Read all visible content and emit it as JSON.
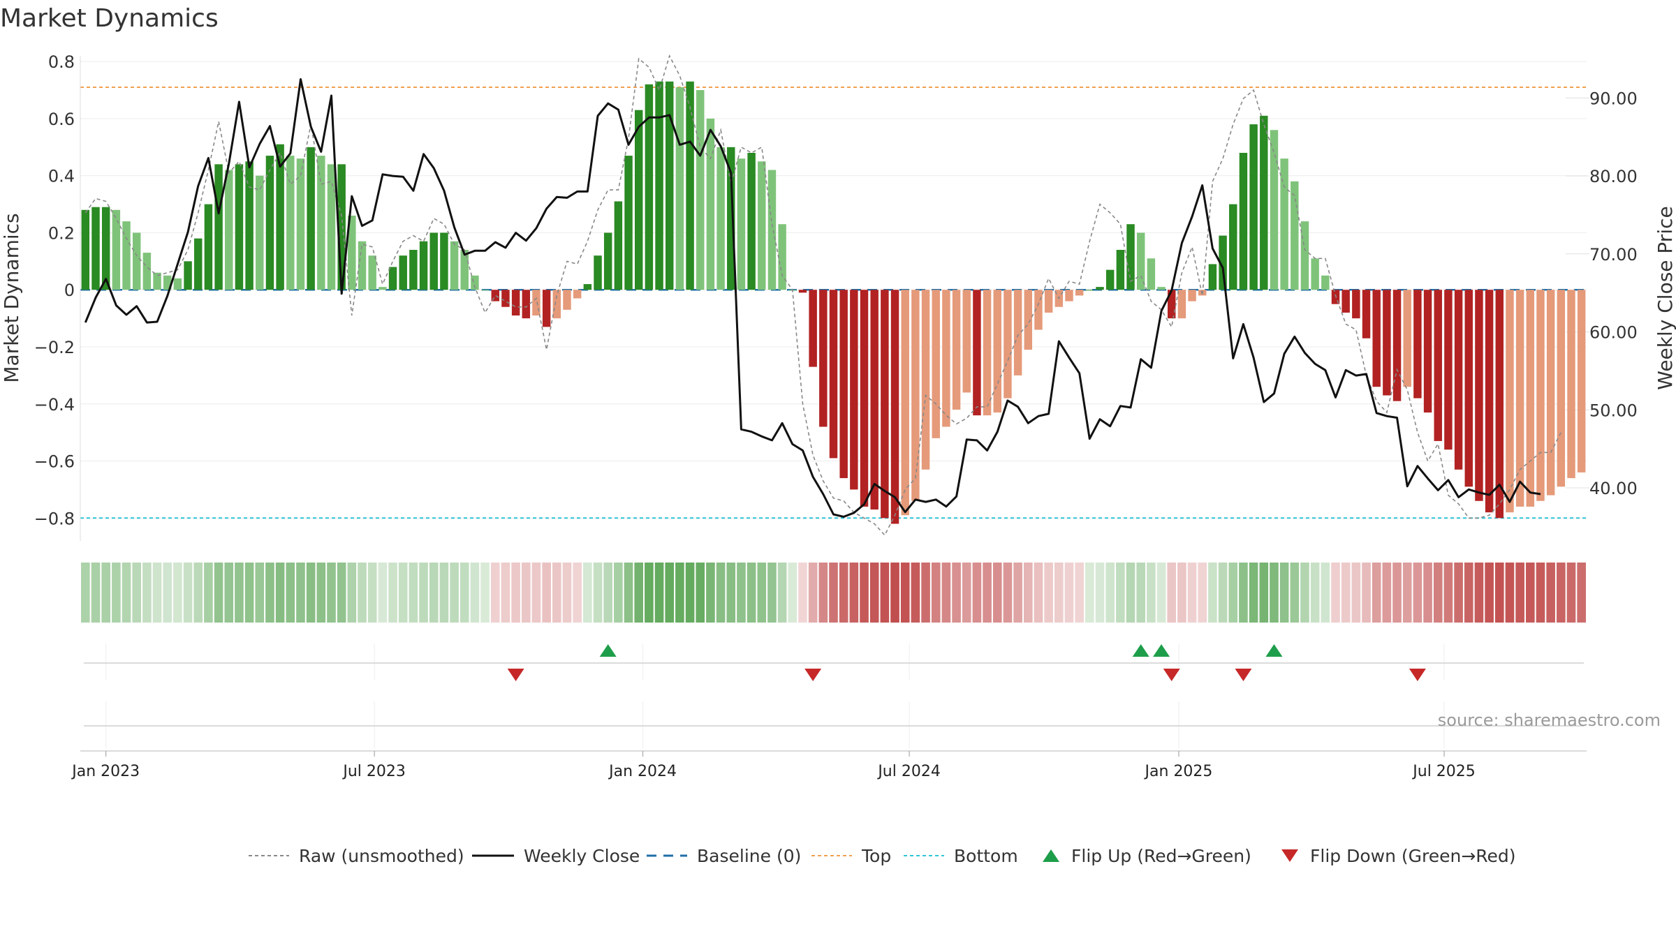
{
  "title": "Market Dynamics",
  "source": "source: sharemaestro.com",
  "colors": {
    "pos_strong": "#2a8a23",
    "pos_weak": "#7fc37a",
    "neg_strong": "#b22222",
    "neg_weak": "#e59a7a",
    "price_line": "#111111",
    "raw_line": "#888888",
    "baseline": "#1f6fa8",
    "top": "#f0a050",
    "bottom": "#2ec4d6",
    "flip_up": "#1e9e4a",
    "flip_down": "#c62828"
  },
  "chart_data": {
    "type": "bar",
    "title": "Market Dynamics",
    "ylabel": "Market Dynamics",
    "y2label": "Weekly Close Price",
    "ylim": [
      -0.88,
      0.82
    ],
    "y2lim": [
      33.2,
      95.4
    ],
    "yticks": [
      "0.8",
      "0.6",
      "0.4",
      "0.2",
      "0",
      "−0.2",
      "−0.4",
      "−0.6",
      "−0.8"
    ],
    "y2ticks": [
      "90.00",
      "80.00",
      "70.00",
      "60.00",
      "50.00",
      "40.00"
    ],
    "xticks": [
      "Jan 2023",
      "Jul 2023",
      "Jan 2024",
      "Jul 2024",
      "Jan 2025",
      "Jul 2025"
    ],
    "top_level": 0.71,
    "bottom_level": -0.8,
    "dynamics": [
      0.28,
      0.29,
      0.29,
      0.28,
      0.24,
      0.2,
      0.13,
      0.06,
      0.05,
      0.04,
      0.1,
      0.18,
      0.3,
      0.44,
      0.42,
      0.44,
      0.45,
      0.4,
      0.47,
      0.51,
      0.47,
      0.46,
      0.5,
      0.47,
      0.44,
      0.44,
      0.26,
      0.17,
      0.12,
      0.01,
      0.08,
      0.12,
      0.14,
      0.17,
      0.2,
      0.2,
      0.17,
      0.14,
      0.05,
      0.0,
      -0.04,
      -0.06,
      -0.09,
      -0.1,
      -0.09,
      -0.13,
      -0.1,
      -0.07,
      -0.03,
      0.02,
      0.12,
      0.2,
      0.31,
      0.47,
      0.63,
      0.72,
      0.73,
      0.73,
      0.71,
      0.73,
      0.7,
      0.6,
      0.5,
      0.5,
      0.46,
      0.48,
      0.45,
      0.42,
      0.23,
      0.0,
      -0.01,
      -0.27,
      -0.48,
      -0.59,
      -0.66,
      -0.7,
      -0.76,
      -0.77,
      -0.8,
      -0.82,
      -0.79,
      -0.74,
      -0.63,
      -0.52,
      -0.48,
      -0.42,
      -0.36,
      -0.44,
      -0.44,
      -0.43,
      -0.38,
      -0.3,
      -0.21,
      -0.14,
      -0.08,
      -0.06,
      -0.04,
      -0.02,
      0.0,
      0.01,
      0.07,
      0.14,
      0.23,
      0.2,
      0.11,
      0.01,
      -0.1,
      -0.1,
      -0.04,
      -0.02,
      0.09,
      0.19,
      0.3,
      0.48,
      0.58,
      0.61,
      0.56,
      0.46,
      0.38,
      0.24,
      0.11,
      0.05,
      -0.05,
      -0.08,
      -0.1,
      -0.17,
      -0.34,
      -0.37,
      -0.39,
      -0.34,
      -0.38,
      -0.43,
      -0.53,
      -0.56,
      -0.63,
      -0.69,
      -0.74,
      -0.78,
      -0.8,
      -0.78,
      -0.76,
      -0.76,
      -0.74,
      -0.72,
      -0.69,
      -0.66,
      -0.64
    ],
    "raw": [
      0.27,
      0.32,
      0.31,
      0.25,
      0.18,
      0.12,
      0.08,
      0.05,
      0.06,
      0.07,
      0.14,
      0.27,
      0.42,
      0.59,
      0.41,
      0.45,
      0.36,
      0.35,
      0.42,
      0.48,
      0.37,
      0.4,
      0.58,
      0.37,
      0.38,
      0.26,
      -0.09,
      0.16,
      0.15,
      0.02,
      0.1,
      0.17,
      0.19,
      0.17,
      0.25,
      0.23,
      0.16,
      0.14,
      0.01,
      -0.08,
      -0.02,
      -0.04,
      -0.06,
      -0.06,
      -0.03,
      -0.21,
      -0.02,
      0.1,
      0.09,
      0.17,
      0.28,
      0.35,
      0.35,
      0.53,
      0.81,
      0.78,
      0.7,
      0.82,
      0.75,
      0.64,
      0.5,
      0.46,
      0.56,
      0.37,
      0.5,
      0.48,
      0.5,
      0.23,
      0.05,
      0.0,
      -0.4,
      -0.58,
      -0.67,
      -0.73,
      -0.74,
      -0.78,
      -0.8,
      -0.82,
      -0.86,
      -0.79,
      -0.7,
      -0.66,
      -0.37,
      -0.4,
      -0.44,
      -0.47,
      -0.45,
      -0.41,
      -0.41,
      -0.33,
      -0.25,
      -0.16,
      -0.12,
      -0.05,
      0.04,
      -0.03,
      0.03,
      0.02,
      0.17,
      0.3,
      0.27,
      0.23,
      0.03,
      0.05,
      -0.04,
      -0.07,
      -0.13,
      0.06,
      0.15,
      -0.02,
      0.38,
      0.46,
      0.58,
      0.67,
      0.7,
      0.58,
      0.48,
      0.36,
      0.33,
      0.14,
      0.11,
      0.11,
      -0.02,
      -0.12,
      -0.14,
      -0.3,
      -0.39,
      -0.43,
      -0.28,
      -0.35,
      -0.5,
      -0.6,
      -0.54,
      -0.72,
      -0.75,
      -0.8,
      -0.8,
      -0.79,
      -0.75,
      -0.7,
      -0.63,
      -0.6,
      -0.57,
      -0.57,
      -0.5
    ],
    "close": [
      61.2,
      64.4,
      66.8,
      63.4,
      62.2,
      63.3,
      61.2,
      61.3,
      64.6,
      68.7,
      72.8,
      78.7,
      82.3,
      75.2,
      81.6,
      89.5,
      81.1,
      84.1,
      86.4,
      81.2,
      82.9,
      92.4,
      86.3,
      83.1,
      90.3,
      64.9,
      77.4,
      73.6,
      74.3,
      80.2,
      80.0,
      79.9,
      78.1,
      82.8,
      81.0,
      78.1,
      73.4,
      69.9,
      70.4,
      70.4,
      71.5,
      70.8,
      72.7,
      71.7,
      73.3,
      75.8,
      77.3,
      77.2,
      78.0,
      78.0,
      87.7,
      89.3,
      88.5,
      84.0,
      86.3,
      87.5,
      87.5,
      87.8,
      84.0,
      84.4,
      82.6,
      85.9,
      83.8,
      80.4,
      47.5,
      47.2,
      46.6,
      46.1,
      48.3,
      45.6,
      44.8,
      41.4,
      39.2,
      36.6,
      36.3,
      36.8,
      37.9,
      40.5,
      39.6,
      38.8,
      36.9,
      38.5,
      38.2,
      38.5,
      37.6,
      38.9,
      46.2,
      46.1,
      44.8,
      47.2,
      51.2,
      50.4,
      48.3,
      49.2,
      49.5,
      58.8,
      56.7,
      54.7,
      46.3,
      48.8,
      47.9,
      50.5,
      50.3,
      56.5,
      55.4,
      62.7,
      65.3,
      71.4,
      74.8,
      78.8,
      70.7,
      68.2,
      56.6,
      61.0,
      56.7,
      51.0,
      52.1,
      57.2,
      59.4,
      57.3,
      55.9,
      55.1,
      51.6,
      55.1,
      54.4,
      54.6,
      49.6,
      49.2,
      49.0,
      40.2,
      42.8,
      41.2,
      39.7,
      41.0,
      38.8,
      39.8,
      39.4,
      39.1,
      40.4,
      38.2,
      40.8,
      39.4,
      39.2
    ],
    "flips_up": [
      51,
      103,
      105,
      116
    ],
    "flips_down": [
      42,
      71,
      106,
      113,
      130
    ]
  },
  "legend": [
    {
      "label": "Raw (unsmoothed)",
      "kind": "dashed-gray"
    },
    {
      "label": "Weekly Close",
      "kind": "solid-black"
    },
    {
      "label": "Baseline (0)",
      "kind": "dashed-blue"
    },
    {
      "label": "Top",
      "kind": "dotted-orange"
    },
    {
      "label": "Bottom",
      "kind": "dotted-cyan"
    },
    {
      "label": "Flip Up (Red→Green)",
      "kind": "tri-up"
    },
    {
      "label": "Flip Down (Green→Red)",
      "kind": "tri-down"
    }
  ]
}
